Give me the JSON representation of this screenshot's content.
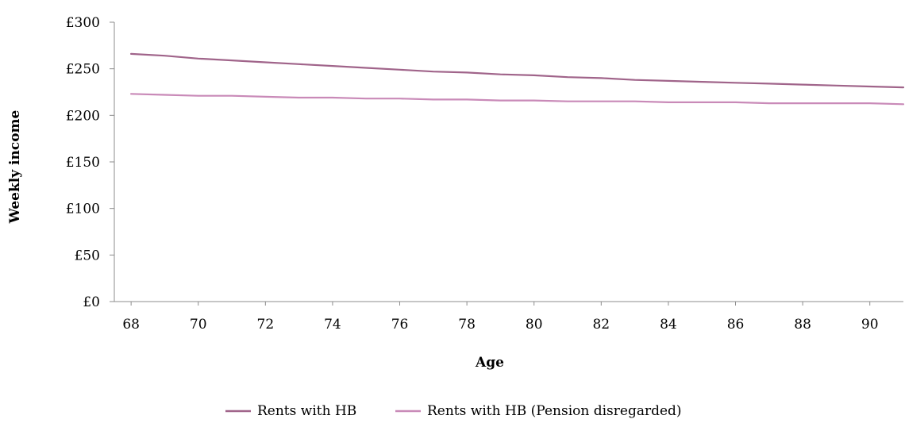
{
  "chart_data": {
    "type": "line",
    "title": "",
    "xlabel": "Age",
    "ylabel": "Weekly income",
    "x": [
      68,
      69,
      70,
      71,
      72,
      73,
      74,
      75,
      76,
      77,
      78,
      79,
      80,
      81,
      82,
      83,
      84,
      85,
      86,
      87,
      88,
      89,
      90,
      91
    ],
    "x_ticks": [
      "68",
      "70",
      "72",
      "74",
      "76",
      "78",
      "80",
      "82",
      "84",
      "86",
      "88",
      "90"
    ],
    "xlim": [
      67.5,
      91
    ],
    "ylim": [
      0,
      300
    ],
    "y_ticks": [
      "£0",
      "£50",
      "£100",
      "£150",
      "£200",
      "£250",
      "£300"
    ],
    "grid": false,
    "legend_position": "bottom",
    "series": [
      {
        "name": "Rents with HB",
        "color": "#a0648a",
        "values": [
          266,
          264,
          261,
          259,
          257,
          255,
          253,
          251,
          249,
          247,
          246,
          244,
          243,
          241,
          240,
          238,
          237,
          236,
          235,
          234,
          233,
          232,
          231,
          230
        ]
      },
      {
        "name": "Rents with HB (Pension disregarded)",
        "color": "#c98ab8",
        "values": [
          223,
          222,
          221,
          221,
          220,
          219,
          219,
          218,
          218,
          217,
          217,
          216,
          216,
          215,
          215,
          215,
          214,
          214,
          214,
          213,
          213,
          213,
          213,
          212
        ]
      }
    ]
  }
}
